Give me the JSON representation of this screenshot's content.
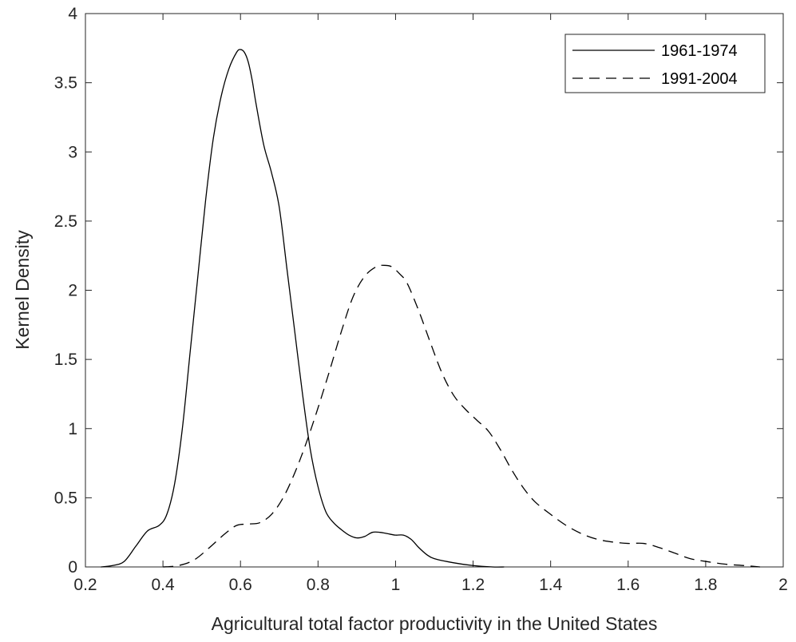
{
  "chart_data": {
    "type": "line",
    "title": "",
    "xlabel": "Agricultural total factor productivity in the United States",
    "ylabel": "Kernel Density",
    "xlim": [
      0.2,
      2
    ],
    "ylim": [
      0,
      4
    ],
    "xticks": [
      0.2,
      0.4,
      0.6,
      0.8,
      1,
      1.2,
      1.4,
      1.6,
      1.8,
      2
    ],
    "yticks": [
      0,
      0.5,
      1,
      1.5,
      2,
      2.5,
      3,
      3.5,
      4
    ],
    "xtick_labels": [
      "0.2",
      "0.4",
      "0.6",
      "0.8",
      "1",
      "1.2",
      "1.4",
      "1.6",
      "1.8",
      "2"
    ],
    "ytick_labels": [
      "0",
      "0.5",
      "1",
      "1.5",
      "2",
      "2.5",
      "3",
      "3.5",
      "4"
    ],
    "grid": false,
    "legend_position": "top-right",
    "series": [
      {
        "name": "1961-1974",
        "line_style": "solid",
        "color": "#000000",
        "x": [
          0.24,
          0.27,
          0.3,
          0.33,
          0.36,
          0.39,
          0.41,
          0.43,
          0.45,
          0.47,
          0.49,
          0.51,
          0.53,
          0.55,
          0.57,
          0.59,
          0.6,
          0.61,
          0.62,
          0.63,
          0.64,
          0.66,
          0.68,
          0.7,
          0.72,
          0.74,
          0.76,
          0.78,
          0.8,
          0.82,
          0.84,
          0.86,
          0.88,
          0.9,
          0.92,
          0.94,
          0.96,
          0.98,
          1.0,
          1.02,
          1.04,
          1.06,
          1.08,
          1.1,
          1.15,
          1.2,
          1.25,
          1.28
        ],
        "values": [
          0.0,
          0.01,
          0.04,
          0.15,
          0.26,
          0.3,
          0.38,
          0.6,
          1.0,
          1.55,
          2.1,
          2.65,
          3.1,
          3.4,
          3.6,
          3.72,
          3.74,
          3.72,
          3.65,
          3.52,
          3.35,
          3.05,
          2.85,
          2.6,
          2.15,
          1.7,
          1.25,
          0.85,
          0.58,
          0.4,
          0.32,
          0.27,
          0.23,
          0.21,
          0.22,
          0.25,
          0.25,
          0.24,
          0.23,
          0.23,
          0.2,
          0.14,
          0.09,
          0.06,
          0.03,
          0.01,
          0.0,
          0.0
        ]
      },
      {
        "name": "1991-2004",
        "line_style": "dashed",
        "color": "#000000",
        "x": [
          0.4,
          0.44,
          0.48,
          0.52,
          0.56,
          0.59,
          0.62,
          0.65,
          0.68,
          0.71,
          0.74,
          0.77,
          0.8,
          0.83,
          0.86,
          0.89,
          0.92,
          0.95,
          0.97,
          0.99,
          1.01,
          1.03,
          1.06,
          1.09,
          1.12,
          1.15,
          1.18,
          1.21,
          1.24,
          1.27,
          1.3,
          1.33,
          1.36,
          1.4,
          1.44,
          1.48,
          1.52,
          1.56,
          1.6,
          1.64,
          1.68,
          1.72,
          1.76,
          1.8,
          1.85,
          1.9,
          1.94
        ],
        "values": [
          0.0,
          0.01,
          0.05,
          0.14,
          0.24,
          0.3,
          0.31,
          0.32,
          0.38,
          0.5,
          0.68,
          0.9,
          1.15,
          1.42,
          1.7,
          1.95,
          2.1,
          2.17,
          2.18,
          2.17,
          2.12,
          2.05,
          1.85,
          1.62,
          1.4,
          1.24,
          1.14,
          1.06,
          0.98,
          0.85,
          0.7,
          0.57,
          0.47,
          0.38,
          0.3,
          0.24,
          0.2,
          0.18,
          0.17,
          0.17,
          0.14,
          0.1,
          0.06,
          0.04,
          0.02,
          0.01,
          0.0
        ]
      }
    ]
  }
}
